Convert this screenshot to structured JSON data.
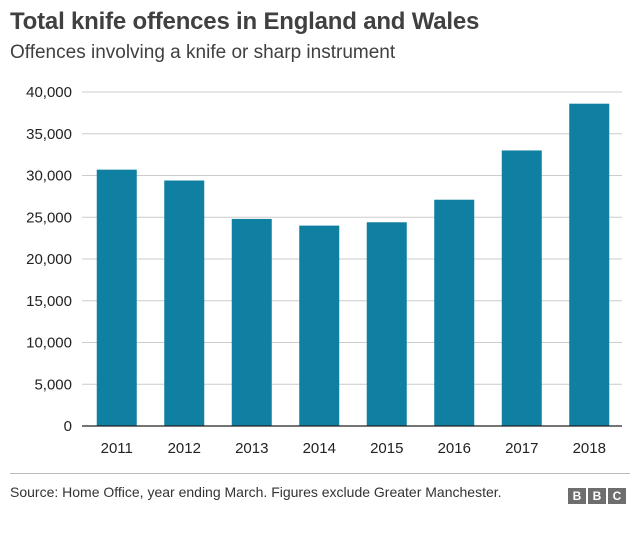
{
  "header": {
    "title": "Total knife offences in England and Wales",
    "subtitle": "Offences involving a knife or sharp instrument"
  },
  "footer": {
    "source": "Source: Home Office, year ending March. Figures exclude Greater Manchester.",
    "logo_letters": [
      "B",
      "B",
      "C"
    ]
  },
  "colors": {
    "bar": "#0f7fa2",
    "grid": "#cccccc",
    "axis": "#222222"
  },
  "chart_data": {
    "type": "bar",
    "title": "Total knife offences in England and Wales",
    "subtitle": "Offences involving a knife or sharp instrument",
    "xlabel": "",
    "ylabel": "",
    "categories": [
      "2011",
      "2012",
      "2013",
      "2014",
      "2015",
      "2016",
      "2017",
      "2018"
    ],
    "values": [
      30700,
      29400,
      24800,
      24000,
      24400,
      27100,
      33000,
      38600
    ],
    "ylim": [
      0,
      40000
    ],
    "yticks": [
      0,
      5000,
      10000,
      15000,
      20000,
      25000,
      30000,
      35000,
      40000
    ],
    "ytick_labels": [
      "0",
      "5,000",
      "10,000",
      "15,000",
      "20,000",
      "25,000",
      "30,000",
      "35,000",
      "40,000"
    ],
    "grid": true,
    "legend": "none"
  }
}
